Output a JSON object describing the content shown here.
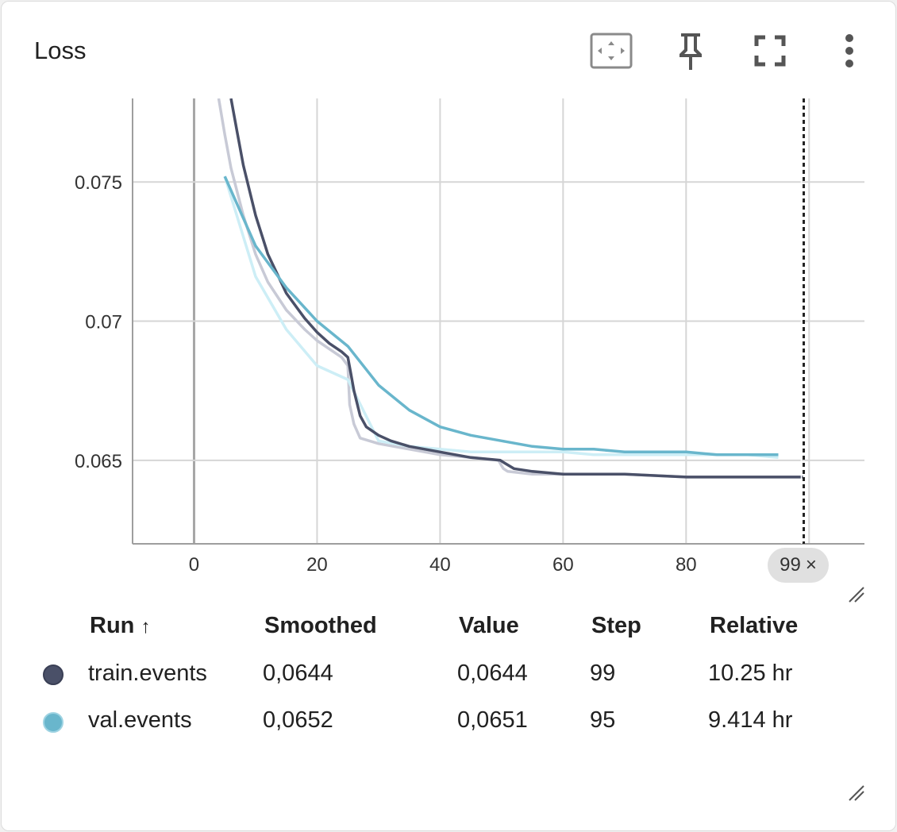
{
  "card": {
    "title": "Loss"
  },
  "toolbar": {
    "fit_domain_icon": "fit-domain-icon",
    "pin_icon": "pin-icon",
    "fullscreen_icon": "fullscreen-icon",
    "more_icon": "more-vert-icon"
  },
  "cursor": {
    "step_label": "99",
    "close_glyph": "×"
  },
  "colors": {
    "train": "#4a5068",
    "train_raw": "#c8cad6",
    "val": "#69b6cc",
    "val_raw": "#cdeef6",
    "grid": "#d6d6d6",
    "zero_line": "#a6a6a6"
  },
  "chart_data": {
    "type": "line",
    "title": "Loss",
    "xlabel": "",
    "ylabel": "",
    "xlim": [
      -10,
      109
    ],
    "ylim": [
      0.062,
      0.078
    ],
    "x_ticks": [
      "0",
      "20",
      "40",
      "60",
      "80"
    ],
    "y_ticks": [
      "0.065",
      "0.07",
      "0.075"
    ],
    "x_tick_values": [
      0,
      20,
      40,
      60,
      80
    ],
    "y_tick_values": [
      0.065,
      0.07,
      0.075
    ],
    "grid": true,
    "cursor_step": 99,
    "series": [
      {
        "name": "train.events",
        "kind": "raw",
        "x": [
          4,
          5,
          6,
          8,
          10,
          12,
          15,
          18,
          20,
          22,
          24,
          25,
          25.3,
          26,
          27,
          30,
          35,
          40,
          45,
          49.5,
          50,
          50.3,
          51,
          55,
          60,
          70,
          80,
          90,
          99
        ],
        "y": [
          0.078,
          0.0767,
          0.0755,
          0.0738,
          0.0724,
          0.0714,
          0.0704,
          0.0697,
          0.0693,
          0.069,
          0.0687,
          0.0684,
          0.067,
          0.0663,
          0.0658,
          0.0656,
          0.0654,
          0.0652,
          0.0651,
          0.065,
          0.0648,
          0.0647,
          0.0646,
          0.0645,
          0.0645,
          0.0645,
          0.0644,
          0.0644,
          0.0644
        ]
      },
      {
        "name": "train.events",
        "kind": "smoothed",
        "x": [
          6,
          7,
          8,
          10,
          12,
          15,
          18,
          20,
          22,
          24,
          25,
          25.5,
          26,
          27,
          28,
          30,
          32,
          35,
          40,
          45,
          49.8,
          50.5,
          52,
          55,
          60,
          70,
          80,
          90,
          99
        ],
        "y": [
          0.078,
          0.0768,
          0.0756,
          0.0738,
          0.0724,
          0.071,
          0.0701,
          0.0696,
          0.0692,
          0.0689,
          0.0687,
          0.0681,
          0.0675,
          0.0666,
          0.0662,
          0.0659,
          0.0657,
          0.0655,
          0.0653,
          0.0651,
          0.065,
          0.0649,
          0.0647,
          0.0646,
          0.0645,
          0.0645,
          0.0644,
          0.0644,
          0.0644
        ]
      },
      {
        "name": "val.events",
        "kind": "raw",
        "x": [
          5,
          10,
          15,
          20,
          25,
          30,
          35,
          40,
          45,
          50,
          55,
          60,
          65,
          70,
          75,
          80,
          85,
          90,
          95
        ],
        "y": [
          0.0752,
          0.0716,
          0.0697,
          0.0684,
          0.0679,
          0.0657,
          0.0655,
          0.0654,
          0.0653,
          0.0653,
          0.0653,
          0.0653,
          0.0652,
          0.0652,
          0.0652,
          0.0652,
          0.0652,
          0.0652,
          0.0651
        ]
      },
      {
        "name": "val.events",
        "kind": "smoothed",
        "x": [
          5,
          10,
          15,
          20,
          25,
          30,
          35,
          40,
          45,
          50,
          55,
          60,
          65,
          70,
          75,
          80,
          85,
          90,
          95
        ],
        "y": [
          0.0752,
          0.0727,
          0.0712,
          0.07,
          0.0691,
          0.0677,
          0.0668,
          0.0662,
          0.0659,
          0.0657,
          0.0655,
          0.0654,
          0.0654,
          0.0653,
          0.0653,
          0.0653,
          0.0652,
          0.0652,
          0.0652
        ]
      }
    ]
  },
  "legend": {
    "headers": {
      "run": "Run",
      "sort_glyph": "↑",
      "smoothed": "Smoothed",
      "value": "Value",
      "step": "Step",
      "relative": "Relative"
    },
    "rows": [
      {
        "run": "train.events",
        "smoothed": "0,0644",
        "value": "0,0644",
        "step": "99",
        "relative": "10.25 hr",
        "color": "#4a5068"
      },
      {
        "run": "val.events",
        "smoothed": "0,0652",
        "value": "0,0651",
        "step": "95",
        "relative": "9.414 hr",
        "color": "#69b6cc"
      }
    ]
  }
}
